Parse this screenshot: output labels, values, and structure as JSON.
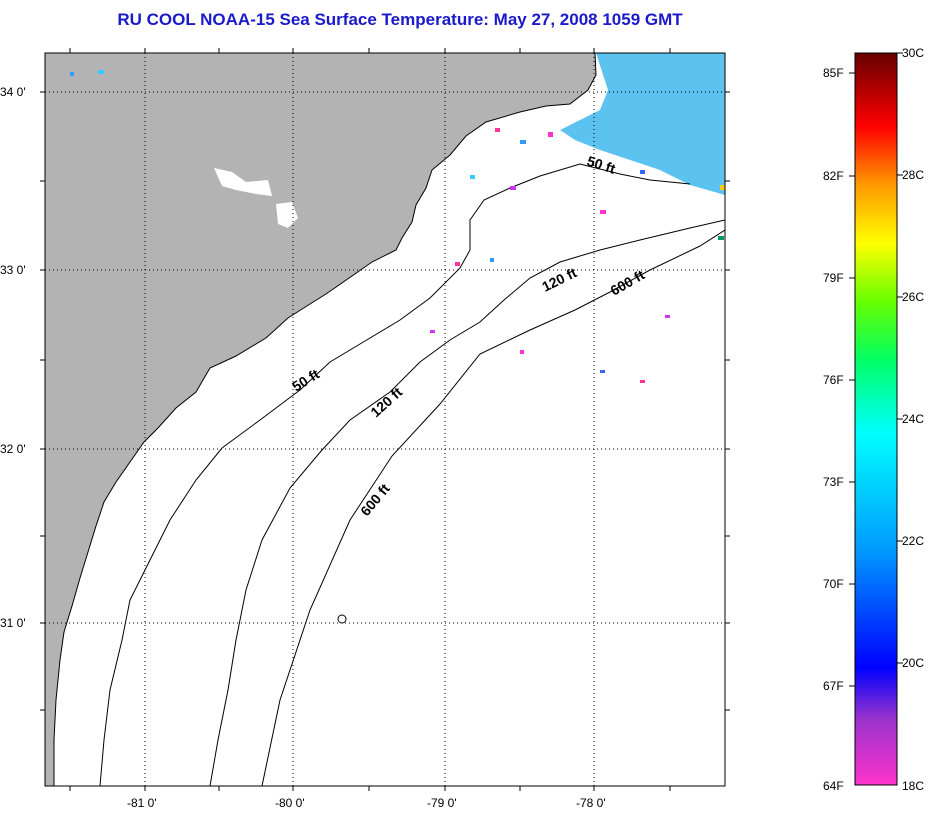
{
  "title": "RU COOL  NOAA-15  Sea Surface Temperature:  May 27, 2008 1059 GMT",
  "axes": {
    "lat_labels": [
      "34 0'",
      "33 0'",
      "32 0'",
      "31 0'"
    ],
    "lon_labels": [
      "-81 0'",
      "-80 0'",
      "-79 0'",
      "-78 0'"
    ]
  },
  "contours": {
    "c50_a": "50 ft",
    "c50_b": "50 ft",
    "c120_a": "120 ft",
    "c120_b": "120 ft",
    "c600_a": "600 ft",
    "c600_b": "600 ft"
  },
  "colorbar": {
    "fahrenheit": [
      "85F",
      "82F",
      "79F",
      "76F",
      "73F",
      "70F",
      "67F",
      "64F"
    ],
    "celsius": [
      "30C",
      "28C",
      "26C",
      "24C",
      "22C",
      "20C",
      "18C"
    ]
  },
  "colors": {
    "title": "#1a1acc",
    "land": "#b3b3b3",
    "ocean": "#ffffff"
  }
}
